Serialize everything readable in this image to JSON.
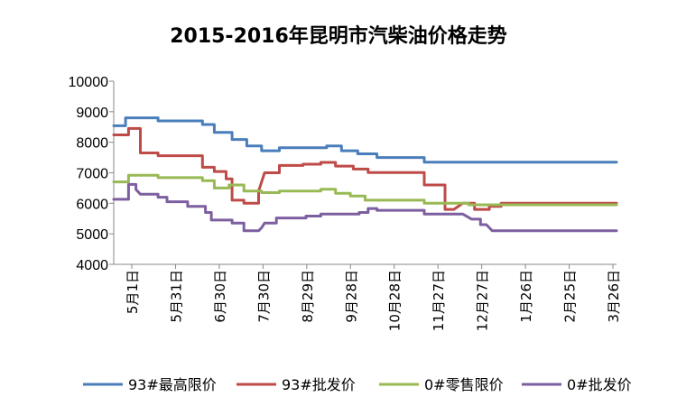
{
  "chart_data": {
    "type": "line",
    "title": "2015-2016年昆明市汽柴油价格走势",
    "xlabel": "",
    "ylabel": "",
    "ylim": [
      4000,
      10000
    ],
    "yticks": [
      4000,
      5000,
      6000,
      7000,
      8000,
      9000,
      10000
    ],
    "xticks": [
      "5月1日",
      "5月31日",
      "6月30日",
      "7月30日",
      "8月29日",
      "9月28日",
      "10月28日",
      "11月27日",
      "12月27日",
      "1月26日",
      "2月25日",
      "3月26日"
    ],
    "x_range": [
      0,
      340
    ],
    "grid": false,
    "legend": "bottom",
    "series": [
      {
        "name": "93#最高限价",
        "color": "#4a7ebb",
        "points": [
          [
            0,
            8540
          ],
          [
            8,
            8540
          ],
          [
            8,
            8800
          ],
          [
            30,
            8800
          ],
          [
            30,
            8700
          ],
          [
            60,
            8700
          ],
          [
            60,
            8580
          ],
          [
            68,
            8580
          ],
          [
            68,
            8320
          ],
          [
            80,
            8320
          ],
          [
            80,
            8090
          ],
          [
            90,
            8090
          ],
          [
            90,
            7880
          ],
          [
            100,
            7880
          ],
          [
            100,
            7720
          ],
          [
            112,
            7720
          ],
          [
            112,
            7820
          ],
          [
            144,
            7820
          ],
          [
            144,
            7880
          ],
          [
            154,
            7880
          ],
          [
            154,
            7720
          ],
          [
            165,
            7720
          ],
          [
            165,
            7620
          ],
          [
            178,
            7620
          ],
          [
            178,
            7500
          ],
          [
            210,
            7500
          ],
          [
            210,
            7350
          ],
          [
            340,
            7350
          ]
        ]
      },
      {
        "name": "93#批发价",
        "color": "#be4b48",
        "points": [
          [
            0,
            8240
          ],
          [
            10,
            8240
          ],
          [
            10,
            8450
          ],
          [
            18,
            8450
          ],
          [
            18,
            7650
          ],
          [
            30,
            7650
          ],
          [
            30,
            7560
          ],
          [
            60,
            7560
          ],
          [
            60,
            7180
          ],
          [
            68,
            7180
          ],
          [
            68,
            7040
          ],
          [
            76,
            7040
          ],
          [
            76,
            6800
          ],
          [
            80,
            6800
          ],
          [
            80,
            6100
          ],
          [
            88,
            6100
          ],
          [
            88,
            6000
          ],
          [
            98,
            6000
          ],
          [
            98,
            6400
          ],
          [
            102,
            7000
          ],
          [
            112,
            7000
          ],
          [
            112,
            7240
          ],
          [
            128,
            7240
          ],
          [
            128,
            7280
          ],
          [
            140,
            7280
          ],
          [
            140,
            7340
          ],
          [
            150,
            7340
          ],
          [
            150,
            7220
          ],
          [
            162,
            7220
          ],
          [
            162,
            7120
          ],
          [
            172,
            7120
          ],
          [
            172,
            7010
          ],
          [
            210,
            7010
          ],
          [
            210,
            6600
          ],
          [
            224,
            6600
          ],
          [
            224,
            5800
          ],
          [
            230,
            5800
          ],
          [
            236,
            6000
          ],
          [
            244,
            6000
          ],
          [
            244,
            5800
          ],
          [
            254,
            5800
          ],
          [
            254,
            5900
          ],
          [
            262,
            5900
          ],
          [
            262,
            6000
          ],
          [
            340,
            6000
          ]
        ]
      },
      {
        "name": "0#零售限价",
        "color": "#98b954",
        "points": [
          [
            0,
            6700
          ],
          [
            10,
            6700
          ],
          [
            10,
            6920
          ],
          [
            30,
            6920
          ],
          [
            30,
            6840
          ],
          [
            60,
            6840
          ],
          [
            60,
            6740
          ],
          [
            68,
            6740
          ],
          [
            68,
            6500
          ],
          [
            78,
            6500
          ],
          [
            78,
            6600
          ],
          [
            88,
            6600
          ],
          [
            88,
            6400
          ],
          [
            100,
            6400
          ],
          [
            100,
            6350
          ],
          [
            112,
            6350
          ],
          [
            112,
            6400
          ],
          [
            140,
            6400
          ],
          [
            140,
            6460
          ],
          [
            150,
            6460
          ],
          [
            150,
            6330
          ],
          [
            160,
            6330
          ],
          [
            160,
            6240
          ],
          [
            170,
            6240
          ],
          [
            170,
            6100
          ],
          [
            210,
            6100
          ],
          [
            210,
            6000
          ],
          [
            240,
            6000
          ],
          [
            240,
            5950
          ],
          [
            340,
            5950
          ]
        ]
      },
      {
        "name": "0#批发价",
        "color": "#7d5fa0",
        "points": [
          [
            0,
            6130
          ],
          [
            10,
            6130
          ],
          [
            10,
            6620
          ],
          [
            15,
            6620
          ],
          [
            15,
            6450
          ],
          [
            18,
            6300
          ],
          [
            30,
            6300
          ],
          [
            30,
            6200
          ],
          [
            36,
            6200
          ],
          [
            36,
            6050
          ],
          [
            50,
            6050
          ],
          [
            50,
            5900
          ],
          [
            62,
            5900
          ],
          [
            62,
            5700
          ],
          [
            66,
            5700
          ],
          [
            66,
            5450
          ],
          [
            80,
            5450
          ],
          [
            80,
            5350
          ],
          [
            88,
            5350
          ],
          [
            88,
            5100
          ],
          [
            98,
            5100
          ],
          [
            100,
            5200
          ],
          [
            102,
            5350
          ],
          [
            110,
            5350
          ],
          [
            110,
            5520
          ],
          [
            130,
            5520
          ],
          [
            130,
            5580
          ],
          [
            140,
            5580
          ],
          [
            140,
            5650
          ],
          [
            166,
            5650
          ],
          [
            166,
            5700
          ],
          [
            172,
            5700
          ],
          [
            172,
            5830
          ],
          [
            178,
            5830
          ],
          [
            178,
            5770
          ],
          [
            210,
            5770
          ],
          [
            210,
            5650
          ],
          [
            236,
            5650
          ],
          [
            236,
            5650
          ],
          [
            242,
            5480
          ],
          [
            248,
            5480
          ],
          [
            248,
            5300
          ],
          [
            252,
            5300
          ],
          [
            256,
            5100
          ],
          [
            340,
            5100
          ]
        ]
      }
    ]
  }
}
